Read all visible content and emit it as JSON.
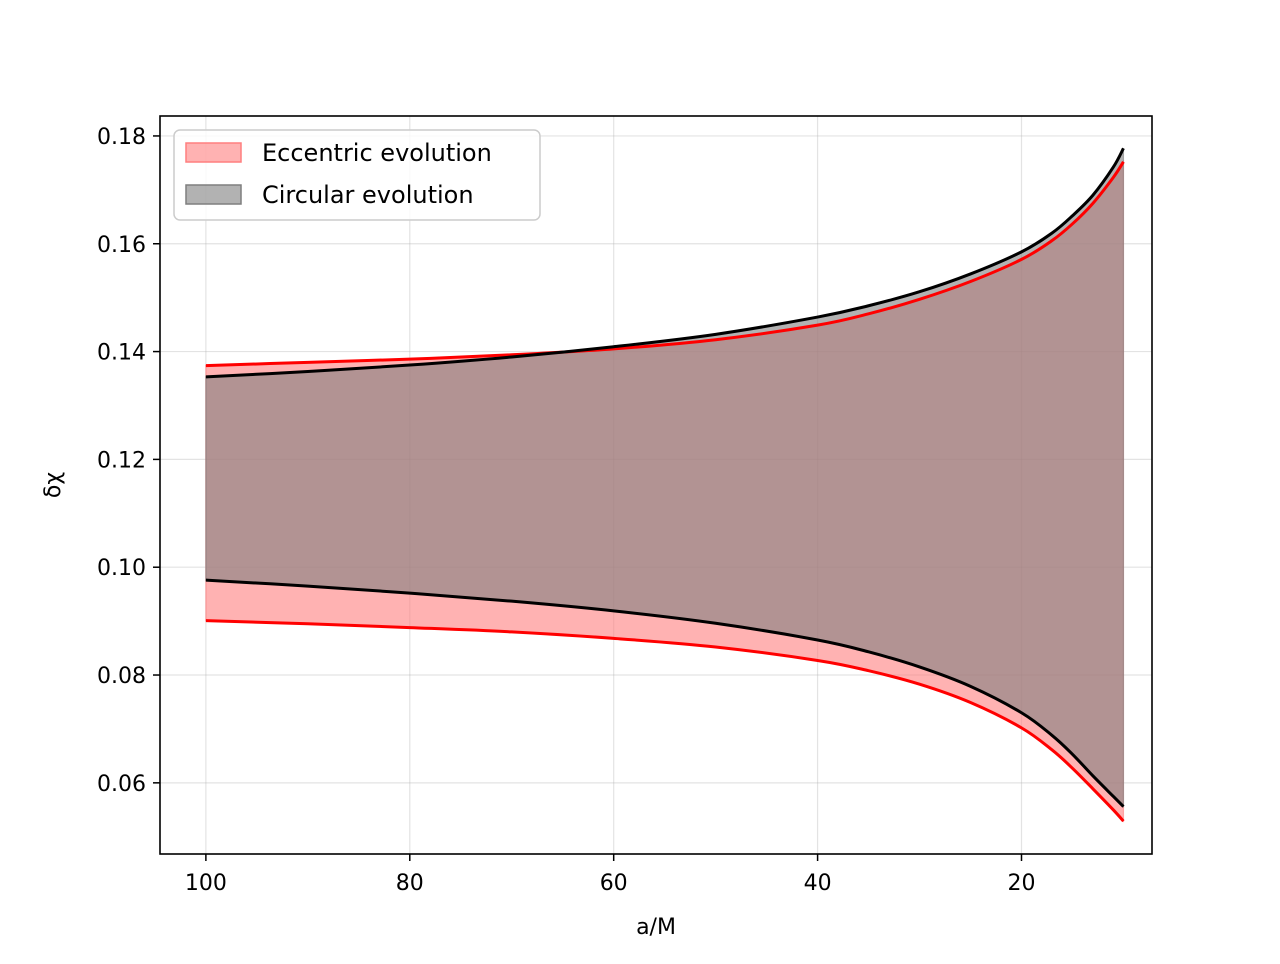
{
  "chart_data": {
    "type": "area",
    "title": "",
    "xlabel": "a/M",
    "ylabel": "δχ",
    "xlim": [
      104.5,
      7.2
    ],
    "ylim": [
      0.0468,
      0.1837
    ],
    "x_inverted": true,
    "grid": true,
    "legend_position": "top-left",
    "xticks": [
      100,
      80,
      60,
      40,
      20
    ],
    "xtick_labels": [
      "100",
      "80",
      "60",
      "40",
      "20"
    ],
    "yticks": [
      0.06,
      0.08,
      0.1,
      0.12,
      0.14,
      0.16,
      0.18
    ],
    "ytick_labels": [
      "0.06",
      "0.08",
      "0.10",
      "0.12",
      "0.14",
      "0.16",
      "0.18"
    ],
    "series": [
      {
        "name": "Eccentric evolution",
        "fill_color": "#ff7f7f",
        "line_color": "#ff0000",
        "x": [
          100,
          90,
          80,
          70,
          60,
          50,
          40,
          35,
          30,
          25,
          20,
          17,
          15,
          13,
          11,
          10
        ],
        "upper": [
          0.1374,
          0.138,
          0.1386,
          0.1394,
          0.1405,
          0.1422,
          0.1449,
          0.147,
          0.1497,
          0.153,
          0.1571,
          0.1606,
          0.1637,
          0.1675,
          0.1723,
          0.1752
        ],
        "lower": [
          0.0901,
          0.0895,
          0.0888,
          0.088,
          0.0868,
          0.0852,
          0.0827,
          0.0808,
          0.0783,
          0.0749,
          0.0702,
          0.0661,
          0.0627,
          0.0589,
          0.055,
          0.0529
        ]
      },
      {
        "name": "Circular evolution",
        "fill_color": "#7f7f7f",
        "line_color": "#000000",
        "x": [
          100,
          90,
          80,
          70,
          60,
          50,
          40,
          35,
          30,
          25,
          20,
          17,
          15,
          13,
          11,
          10
        ],
        "upper": [
          0.1353,
          0.1363,
          0.1375,
          0.139,
          0.1409,
          0.1432,
          0.1464,
          0.1485,
          0.1511,
          0.1544,
          0.1585,
          0.162,
          0.1652,
          0.169,
          0.1742,
          0.1777
        ],
        "lower": [
          0.0976,
          0.0965,
          0.0952,
          0.0937,
          0.0919,
          0.0896,
          0.0865,
          0.0843,
          0.0815,
          0.0779,
          0.073,
          0.0688,
          0.0653,
          0.0613,
          0.0575,
          0.0556
        ]
      }
    ]
  }
}
